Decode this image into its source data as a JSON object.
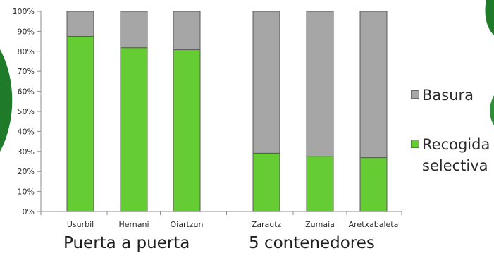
{
  "chart_data": {
    "type": "bar",
    "stacked": true,
    "categories": [
      "Usurbil",
      "Hernani",
      "Oiartzun",
      "Zarautz",
      "Zumaia",
      "Aretxabaleta"
    ],
    "series": [
      {
        "name": "Recogida selectiva",
        "color": "#66cc33",
        "values": [
          87.5,
          81.8,
          80.8,
          29.1,
          27.6,
          26.9
        ]
      },
      {
        "name": "Basura",
        "color": "#a6a6a6",
        "values": [
          12.5,
          18.2,
          19.2,
          70.9,
          72.4,
          73.1
        ]
      }
    ],
    "ylim": [
      0,
      100
    ],
    "yticks": [
      "0%",
      "10%",
      "20%",
      "30%",
      "40%",
      "50%",
      "60%",
      "70%",
      "80%",
      "90%",
      "100%"
    ],
    "gridlines": false,
    "legend": {
      "position": "right",
      "items": [
        {
          "label": "Basura",
          "color": "#a6a6a6"
        },
        {
          "label": "Recogida\nselectiva",
          "color": "#66cc33"
        }
      ]
    },
    "groups": [
      {
        "label": "Puerta a puerta",
        "categories": [
          "Usurbil",
          "Hernani",
          "Oiartzun"
        ]
      },
      {
        "label": "5 contenedores",
        "categories": [
          "Zarautz",
          "Zumaia",
          "Aretxabaleta"
        ]
      }
    ]
  }
}
